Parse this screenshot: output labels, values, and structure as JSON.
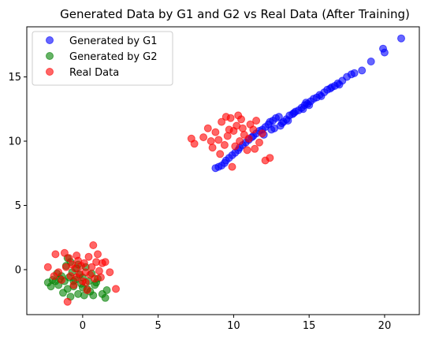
{
  "chart_data": {
    "type": "scatter",
    "title": "Generated Data by G1 and G2 vs Real Data (After Training)",
    "xlabel": "",
    "ylabel": "",
    "xlim": [
      -3.7,
      22.3
    ],
    "ylim": [
      -3.5,
      18.9
    ],
    "xticks": [
      0,
      5,
      10,
      15,
      20
    ],
    "yticks": [
      0,
      5,
      10,
      15
    ],
    "legend_position": "top-left",
    "grid": false,
    "series": [
      {
        "name": "Generated by G1",
        "color": "#0000ff",
        "points": [
          [
            8.8,
            7.9
          ],
          [
            9.0,
            8.0
          ],
          [
            9.2,
            8.1
          ],
          [
            9.4,
            8.3
          ],
          [
            9.5,
            8.5
          ],
          [
            9.7,
            8.7
          ],
          [
            9.9,
            8.9
          ],
          [
            10.1,
            9.1
          ],
          [
            10.3,
            9.3
          ],
          [
            10.4,
            9.5
          ],
          [
            10.6,
            9.7
          ],
          [
            10.8,
            9.9
          ],
          [
            11.0,
            10.1
          ],
          [
            11.2,
            10.3
          ],
          [
            11.3,
            10.4
          ],
          [
            11.5,
            10.6
          ],
          [
            11.7,
            10.8
          ],
          [
            11.9,
            10.9
          ],
          [
            12.1,
            11.1
          ],
          [
            12.3,
            11.3
          ],
          [
            12.4,
            11.5
          ],
          [
            12.6,
            11.6
          ],
          [
            12.8,
            11.8
          ],
          [
            13.0,
            11.9
          ],
          [
            13.1,
            11.2
          ],
          [
            13.3,
            11.5
          ],
          [
            13.5,
            11.7
          ],
          [
            13.7,
            12.0
          ],
          [
            13.9,
            12.1
          ],
          [
            14.1,
            12.3
          ],
          [
            14.3,
            12.4
          ],
          [
            14.5,
            12.6
          ],
          [
            14.7,
            12.8
          ],
          [
            14.9,
            12.9
          ],
          [
            15.1,
            13.1
          ],
          [
            15.3,
            13.3
          ],
          [
            15.5,
            13.4
          ],
          [
            15.7,
            13.6
          ],
          [
            16.0,
            13.8
          ],
          [
            16.2,
            14.0
          ],
          [
            16.4,
            14.1
          ],
          [
            16.7,
            14.3
          ],
          [
            16.9,
            14.5
          ],
          [
            17.2,
            14.7
          ],
          [
            17.5,
            15.0
          ],
          [
            17.8,
            15.2
          ],
          [
            18.0,
            15.3
          ],
          [
            18.5,
            15.5
          ],
          [
            19.1,
            16.2
          ],
          [
            19.9,
            17.2
          ],
          [
            20.0,
            16.9
          ],
          [
            21.1,
            18.0
          ],
          [
            12.0,
            10.5
          ],
          [
            12.5,
            10.9
          ],
          [
            13.2,
            11.4
          ],
          [
            14.0,
            12.2
          ],
          [
            14.6,
            12.5
          ],
          [
            15.0,
            12.8
          ],
          [
            15.8,
            13.5
          ],
          [
            16.5,
            14.2
          ],
          [
            17.0,
            14.4
          ],
          [
            13.6,
            11.6
          ],
          [
            14.8,
            13.0
          ],
          [
            12.7,
            11.0
          ]
        ]
      },
      {
        "name": "Generated by G2",
        "color": "#008000",
        "points": [
          [
            -2.3,
            -1.0
          ],
          [
            -2.1,
            -1.3
          ],
          [
            -2.0,
            -0.8
          ],
          [
            -1.7,
            -0.3
          ],
          [
            -1.6,
            -1.2
          ],
          [
            -1.4,
            -0.5
          ],
          [
            -1.3,
            -1.8
          ],
          [
            -1.2,
            -0.9
          ],
          [
            -1.1,
            0.3
          ],
          [
            -1.0,
            -1.5
          ],
          [
            -0.9,
            -0.6
          ],
          [
            -0.8,
            -2.1
          ],
          [
            -0.8,
            0.6
          ],
          [
            -0.7,
            -0.2
          ],
          [
            -0.6,
            -1.3
          ],
          [
            -0.5,
            -0.8
          ],
          [
            -0.4,
            0.1
          ],
          [
            -0.3,
            -1.9
          ],
          [
            -0.2,
            -0.4
          ],
          [
            -0.1,
            -1.1
          ],
          [
            0.0,
            -0.6
          ],
          [
            0.1,
            -2.0
          ],
          [
            0.2,
            0.2
          ],
          [
            0.3,
            -1.5
          ],
          [
            0.4,
            -0.9
          ],
          [
            0.5,
            -1.7
          ],
          [
            0.6,
            -0.3
          ],
          [
            0.8,
            -1.2
          ],
          [
            1.0,
            -0.7
          ],
          [
            1.3,
            -1.9
          ],
          [
            1.5,
            -2.2
          ],
          [
            1.6,
            -1.6
          ],
          [
            -1.5,
            -0.7
          ],
          [
            -1.0,
            0.9
          ],
          [
            -0.6,
            -0.9
          ],
          [
            0.0,
            -1.4
          ],
          [
            0.7,
            -2.0
          ],
          [
            -1.8,
            -0.9
          ],
          [
            -0.3,
            0.4
          ],
          [
            0.9,
            -1.0
          ]
        ]
      },
      {
        "name": "Real Data",
        "color": "#ff0000",
        "points": [
          [
            -2.3,
            0.2
          ],
          [
            -1.8,
            1.2
          ],
          [
            -1.6,
            -0.2
          ],
          [
            -1.4,
            -0.8
          ],
          [
            -1.2,
            1.3
          ],
          [
            -1.1,
            0.2
          ],
          [
            -1.0,
            -2.5
          ],
          [
            -0.9,
            0.9
          ],
          [
            -0.8,
            -0.5
          ],
          [
            -0.7,
            0.4
          ],
          [
            -0.6,
            -1.2
          ],
          [
            -0.5,
            0.1
          ],
          [
            -0.4,
            -0.6
          ],
          [
            -0.3,
            0.7
          ],
          [
            -0.2,
            -0.3
          ],
          [
            -0.1,
            0.3
          ],
          [
            0.0,
            -0.9
          ],
          [
            0.1,
            0.5
          ],
          [
            0.2,
            -0.2
          ],
          [
            0.3,
            -1.6
          ],
          [
            0.4,
            1.0
          ],
          [
            0.5,
            -0.4
          ],
          [
            0.6,
            0.2
          ],
          [
            0.7,
            1.9
          ],
          [
            0.8,
            -0.7
          ],
          [
            0.9,
            0.6
          ],
          [
            1.0,
            1.2
          ],
          [
            1.1,
            -0.1
          ],
          [
            1.3,
            0.5
          ],
          [
            1.5,
            0.6
          ],
          [
            1.8,
            -0.2
          ],
          [
            2.2,
            -1.5
          ],
          [
            -1.9,
            -0.5
          ],
          [
            -0.4,
            1.1
          ],
          [
            0.2,
            -1.0
          ],
          [
            1.2,
            -0.6
          ],
          [
            7.2,
            10.2
          ],
          [
            7.4,
            9.8
          ],
          [
            8.0,
            10.3
          ],
          [
            8.3,
            11.0
          ],
          [
            8.6,
            9.5
          ],
          [
            8.8,
            10.7
          ],
          [
            9.0,
            10.1
          ],
          [
            9.2,
            11.5
          ],
          [
            9.4,
            9.7
          ],
          [
            9.6,
            10.4
          ],
          [
            9.8,
            11.8
          ],
          [
            10.0,
            10.8
          ],
          [
            10.1,
            9.6
          ],
          [
            10.2,
            11.2
          ],
          [
            10.4,
            10.0
          ],
          [
            10.5,
            11.7
          ],
          [
            10.7,
            10.5
          ],
          [
            10.9,
            9.3
          ],
          [
            11.1,
            11.3
          ],
          [
            11.3,
            10.9
          ],
          [
            11.5,
            11.6
          ],
          [
            11.7,
            9.9
          ],
          [
            11.9,
            10.6
          ],
          [
            12.1,
            8.5
          ],
          [
            12.4,
            8.7
          ],
          [
            9.5,
            11.9
          ],
          [
            9.9,
            8.0
          ],
          [
            10.6,
            11.0
          ],
          [
            11.0,
            10.2
          ],
          [
            8.5,
            10.0
          ],
          [
            9.1,
            9.0
          ],
          [
            10.3,
            12.0
          ],
          [
            11.4,
            9.4
          ],
          [
            9.7,
            10.9
          ]
        ]
      }
    ]
  }
}
